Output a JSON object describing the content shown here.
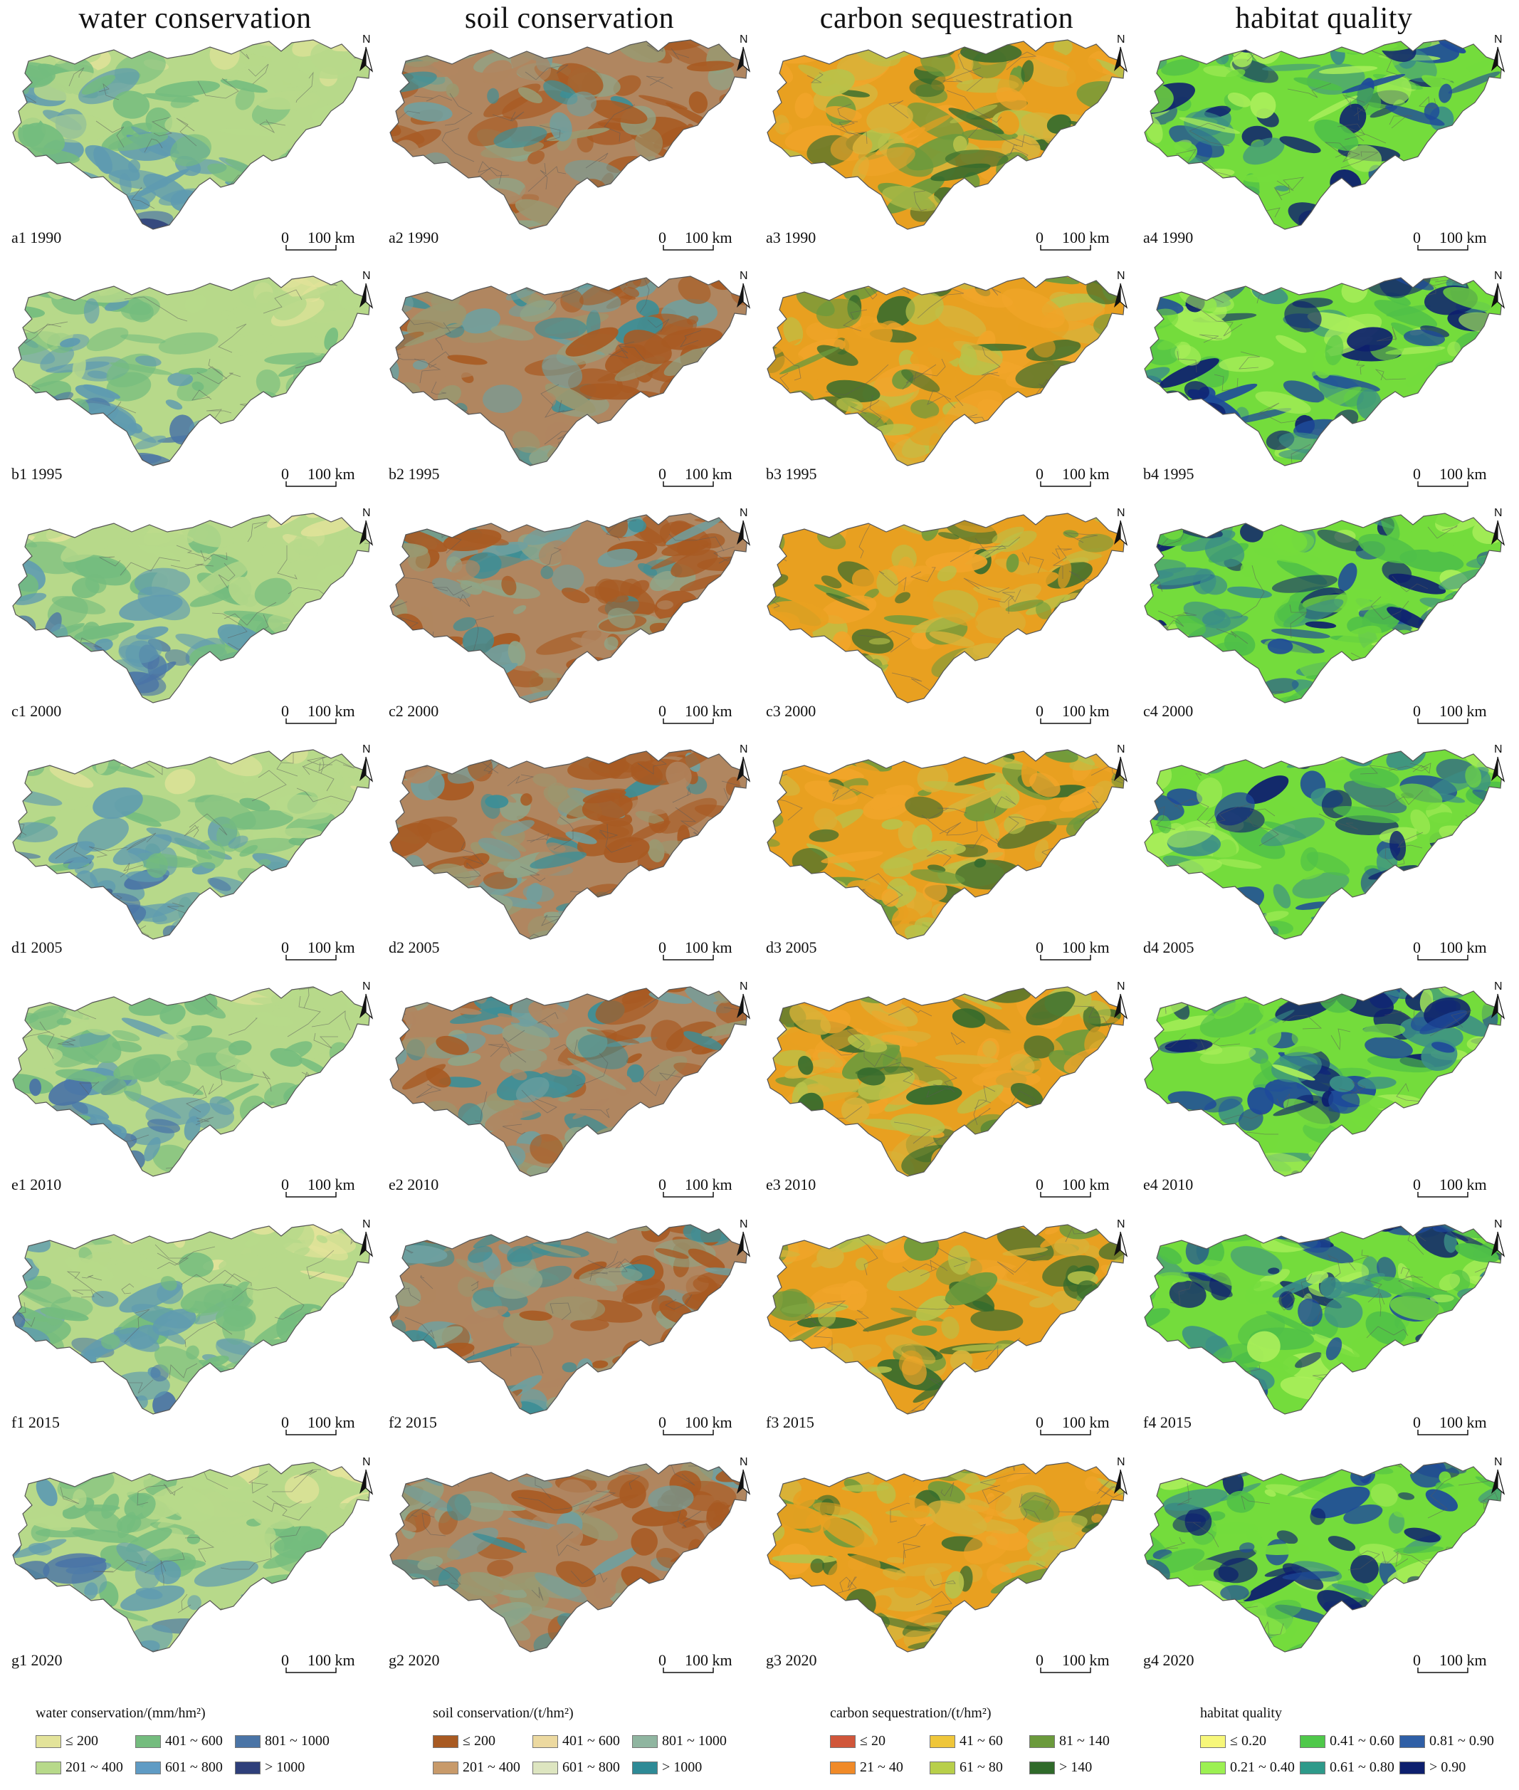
{
  "columns": [
    {
      "title": "water conservation",
      "palette": [
        "#e3e39a",
        "#b7d98a",
        "#74bc7e",
        "#5f9bb0",
        "#4a74a6",
        "#2e3f7a"
      ]
    },
    {
      "title": "soil conservation",
      "palette": [
        "#a85a22",
        "#b08660",
        "#9a9870",
        "#8fa588",
        "#6fa0a0",
        "#3d8e96"
      ]
    },
    {
      "title": "carbon sequestration",
      "palette": [
        "#f1a52a",
        "#e8a020",
        "#d7b33a",
        "#b8c24a",
        "#6b9a3c",
        "#356b2d"
      ]
    },
    {
      "title": "habitat quality",
      "palette": [
        "#a9ee5a",
        "#74dc3c",
        "#4fc048",
        "#3b8f86",
        "#1e4a9a",
        "#0d1f6e"
      ]
    }
  ],
  "rows": [
    {
      "year": "1990",
      "letter": "a"
    },
    {
      "year": "1995",
      "letter": "b"
    },
    {
      "year": "2000",
      "letter": "c"
    },
    {
      "year": "2005",
      "letter": "d"
    },
    {
      "year": "2010",
      "letter": "e"
    },
    {
      "year": "2015",
      "letter": "f"
    },
    {
      "year": "2020",
      "letter": "g"
    }
  ],
  "panel_labels": [
    [
      "a1 1990",
      "a2 1990",
      "a3 1990",
      "a4 1990"
    ],
    [
      "b1 1995",
      "b2 1995",
      "b3 1995",
      "b4 1995"
    ],
    [
      "c1 2000",
      "c2 2000",
      "c3 2000",
      "c4 2000"
    ],
    [
      "d1 2005",
      "d2 2005",
      "d3 2005",
      "d4 2005"
    ],
    [
      "e1 2010",
      "e2 2010",
      "e3 2010",
      "e4 2010"
    ],
    [
      "f1 2015",
      "f2 2015",
      "f3 2015",
      "f4 2015"
    ],
    [
      "g1 2020",
      "g2 2020",
      "g3 2020",
      "g4 2020"
    ]
  ],
  "scale_bar": {
    "zero": "0",
    "distance": "100 km"
  },
  "north_arrow": "N",
  "legends": [
    {
      "title": "water conservation/(mm/hm²)",
      "items": [
        {
          "label": "≤ 200",
          "color": "#e3e39a"
        },
        {
          "label": "401 ~ 600",
          "color": "#74bc7e"
        },
        {
          "label": "801 ~ 1000",
          "color": "#4a74a6"
        },
        {
          "label": "201 ~ 400",
          "color": "#b7d98a"
        },
        {
          "label": "601 ~ 800",
          "color": "#5f9bc4"
        },
        {
          "label": "> 1000",
          "color": "#2e3f7a"
        }
      ]
    },
    {
      "title": "soil conservation/(t/hm²)",
      "items": [
        {
          "label": "≤ 200",
          "color": "#a85a22"
        },
        {
          "label": "401 ~ 600",
          "color": "#ecd9a0"
        },
        {
          "label": "801 ~ 1000",
          "color": "#8fb5a0"
        },
        {
          "label": "201 ~ 400",
          "color": "#c89a6a"
        },
        {
          "label": "601 ~ 800",
          "color": "#dde5c0"
        },
        {
          "label": "> 1000",
          "color": "#2e8a96"
        }
      ]
    },
    {
      "title": "carbon sequestration/(t/hm²)",
      "items": [
        {
          "label": "≤ 20",
          "color": "#d0563a"
        },
        {
          "label": "41 ~ 60",
          "color": "#efc63a"
        },
        {
          "label": "81 ~ 140",
          "color": "#6b9a3c"
        },
        {
          "label": "21 ~ 40",
          "color": "#f08a28"
        },
        {
          "label": "61 ~ 80",
          "color": "#b8cf4a"
        },
        {
          "label": "> 140",
          "color": "#2f6a2a"
        }
      ]
    },
    {
      "title": "habitat quality",
      "items": [
        {
          "label": "≤ 0.20",
          "color": "#f7f77a"
        },
        {
          "label": "0.41 ~ 0.60",
          "color": "#4fc84a"
        },
        {
          "label": "0.81 ~ 0.90",
          "color": "#2f5fa6"
        },
        {
          "label": "0.21 ~ 0.40",
          "color": "#9cf052"
        },
        {
          "label": "0.61 ~ 0.80",
          "color": "#2e9a8a"
        },
        {
          "label": "> 0.90",
          "color": "#0d1f6e"
        }
      ]
    }
  ]
}
